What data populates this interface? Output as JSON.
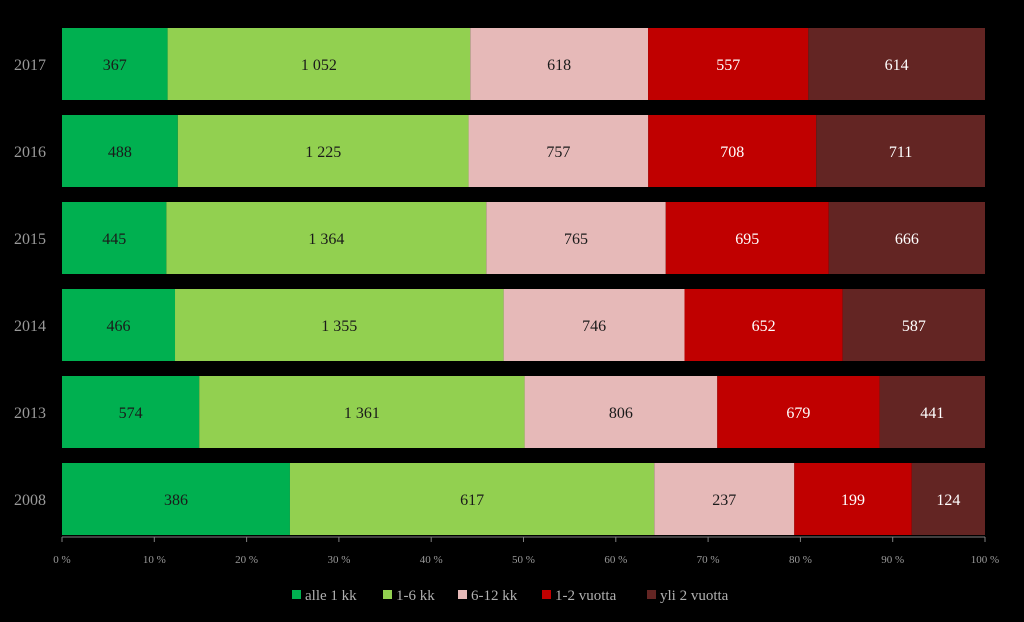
{
  "chart_data": {
    "type": "bar",
    "orientation": "horizontal",
    "stacked": "percent",
    "categories": [
      "2017",
      "2016",
      "2015",
      "2014",
      "2013",
      "2008"
    ],
    "series": [
      {
        "name": "alle 1 kk",
        "color": "#00b050",
        "values": [
          367,
          488,
          445,
          466,
          574,
          386
        ]
      },
      {
        "name": "1-6 kk",
        "color": "#92d050",
        "values": [
          1052,
          1225,
          1364,
          1355,
          1361,
          617
        ]
      },
      {
        "name": "6-12 kk",
        "color": "#e6b9b8",
        "values": [
          618,
          757,
          765,
          746,
          806,
          237
        ]
      },
      {
        "name": "1-2 vuotta",
        "color": "#c00000",
        "values": [
          557,
          708,
          695,
          652,
          679,
          199
        ]
      },
      {
        "name": "yli 2 vuotta",
        "color": "#632523",
        "values": [
          614,
          711,
          666,
          587,
          441,
          124
        ]
      }
    ],
    "value_labels": [
      [
        "367",
        "488",
        "445",
        "466",
        "574",
        "386"
      ],
      [
        "1 052",
        "1 225",
        "1 364",
        "1 355",
        "1 361",
        "617"
      ],
      [
        "618",
        "757",
        "765",
        "746",
        "806",
        "237"
      ],
      [
        "557",
        "708",
        "695",
        "652",
        "679",
        "199"
      ],
      [
        "614",
        "711",
        "666",
        "587",
        "441",
        "124"
      ]
    ],
    "x_ticks": [
      "0 %",
      "10 %",
      "20 %",
      "30 %",
      "40 %",
      "50 %",
      "60 %",
      "70 %",
      "80 %",
      "90 %",
      "100 %"
    ],
    "xlim": [
      0,
      100
    ],
    "xlabel": "",
    "ylabel": "",
    "title": "",
    "grid": false,
    "legend": "bottom",
    "background": "#000000"
  }
}
